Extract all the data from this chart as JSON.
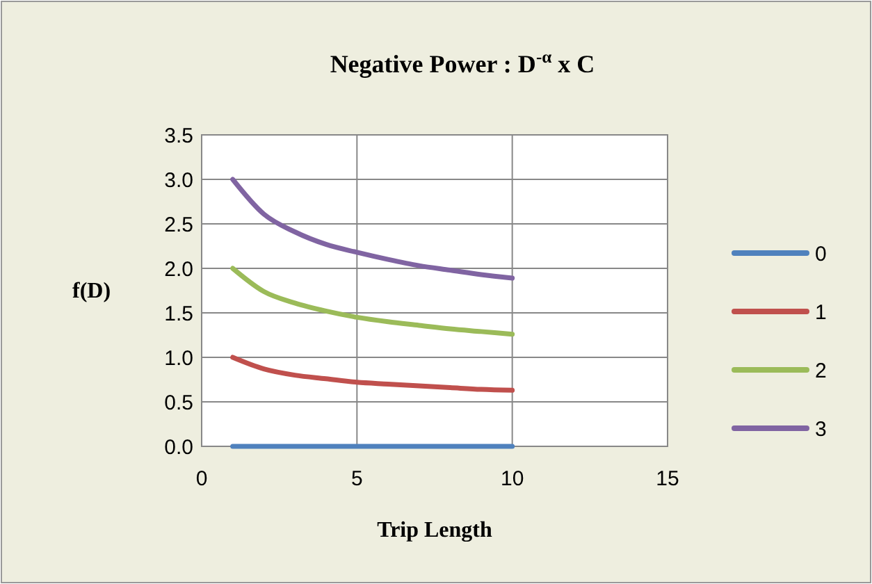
{
  "chart_data": {
    "type": "line",
    "title": "Negative Power : D$^{-α}$ x C",
    "xlabel": "Trip Length",
    "ylabel": "f(D)",
    "x": [
      1,
      2,
      3,
      4,
      5,
      6,
      7,
      8,
      9,
      10
    ],
    "series": [
      {
        "name": "0",
        "color": "#4f81bd",
        "values": [
          0,
          0,
          0,
          0,
          0,
          0,
          0,
          0,
          0,
          0
        ]
      },
      {
        "name": "1",
        "color": "#c0504d",
        "values": [
          1,
          0.87,
          0.8,
          0.76,
          0.72,
          0.7,
          0.68,
          0.66,
          0.64,
          0.63
        ]
      },
      {
        "name": "2",
        "color": "#9bbb59",
        "values": [
          2,
          1.74,
          1.61,
          1.52,
          1.45,
          1.4,
          1.36,
          1.32,
          1.29,
          1.26
        ]
      },
      {
        "name": "3",
        "color": "#8064a2",
        "values": [
          3,
          2.61,
          2.41,
          2.27,
          2.18,
          2.1,
          2.03,
          1.98,
          1.93,
          1.89
        ]
      }
    ],
    "xlim": [
      0,
      15
    ],
    "xticks": [
      0,
      5,
      10,
      15
    ],
    "ylim": [
      0,
      3.5
    ],
    "yticks": [
      {
        "value": 0,
        "label": "0.0"
      },
      {
        "value": 0.5,
        "label": "0.5"
      },
      {
        "value": 1,
        "label": "1.0"
      },
      {
        "value": 1.5,
        "label": "1.5"
      },
      {
        "value": 2,
        "label": "2.0"
      },
      {
        "value": 2.5,
        "label": "2.5"
      },
      {
        "value": 3,
        "label": "3.0"
      },
      {
        "value": 3.5,
        "label": "3.5"
      }
    ],
    "grid": true,
    "legend": "right",
    "marker": "none",
    "line_style": "solid"
  }
}
